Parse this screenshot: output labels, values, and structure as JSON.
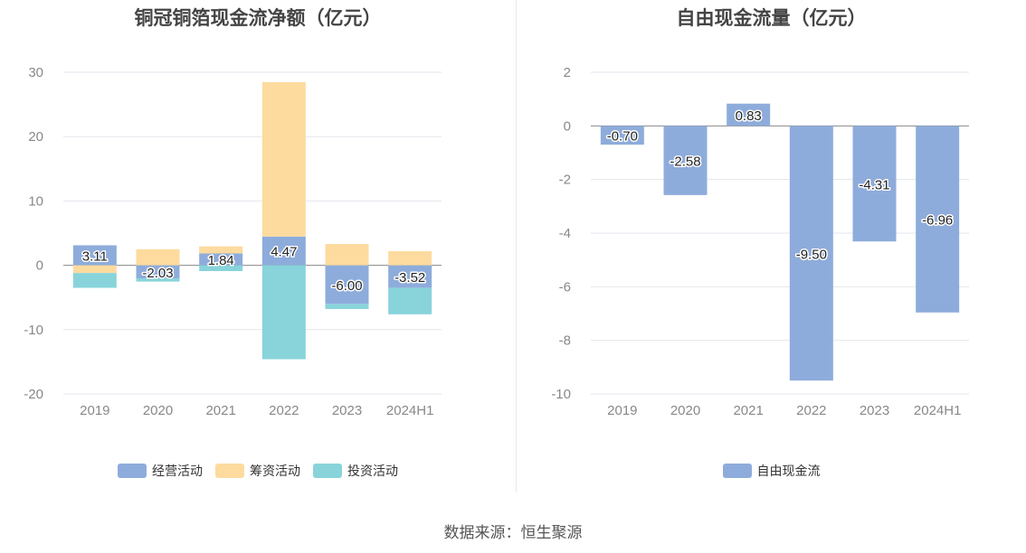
{
  "chart_data": [
    {
      "type": "bar",
      "stacked": true,
      "title": "铜冠铜箔现金流净额（亿元）",
      "categories": [
        "2019",
        "2020",
        "2021",
        "2022",
        "2023",
        "2024H1"
      ],
      "series": [
        {
          "name": "经营活动",
          "color": "#8eacdb",
          "values": [
            3.11,
            -2.03,
            1.84,
            4.47,
            -6.0,
            -3.52
          ]
        },
        {
          "name": "筹资活动",
          "color": "#fddb9f",
          "values": [
            -1.2,
            2.5,
            1.1,
            24.0,
            3.3,
            2.2
          ]
        },
        {
          "name": "投资活动",
          "color": "#88d4da",
          "values": [
            -2.3,
            -0.5,
            -0.9,
            -14.6,
            -0.8,
            -4.1
          ]
        }
      ],
      "data_labels": [
        "3.11",
        "-2.03",
        "1.84",
        "4.47",
        "-6.00",
        "-3.52"
      ],
      "ylim": [
        -20,
        30
      ],
      "yticks": [
        "30",
        "20",
        "10",
        "0",
        "-10",
        "-20"
      ],
      "grid": true,
      "legend_position": "bottom"
    },
    {
      "type": "bar",
      "title": "自由现金流量（亿元）",
      "categories": [
        "2019",
        "2020",
        "2021",
        "2022",
        "2023",
        "2024H1"
      ],
      "series": [
        {
          "name": "自由现金流",
          "color": "#8eacdb",
          "values": [
            -0.7,
            -2.58,
            0.83,
            -9.5,
            -4.31,
            -6.96
          ]
        }
      ],
      "data_labels": [
        "-0.70",
        "-2.58",
        "0.83",
        "-9.50",
        "-4.31",
        "-6.96"
      ],
      "ylim": [
        -10,
        2
      ],
      "yticks": [
        "2",
        "0",
        "-2",
        "-4",
        "-6",
        "-8",
        "-10"
      ],
      "grid": true,
      "legend_position": "bottom"
    }
  ],
  "source": "数据来源：恒生聚源"
}
